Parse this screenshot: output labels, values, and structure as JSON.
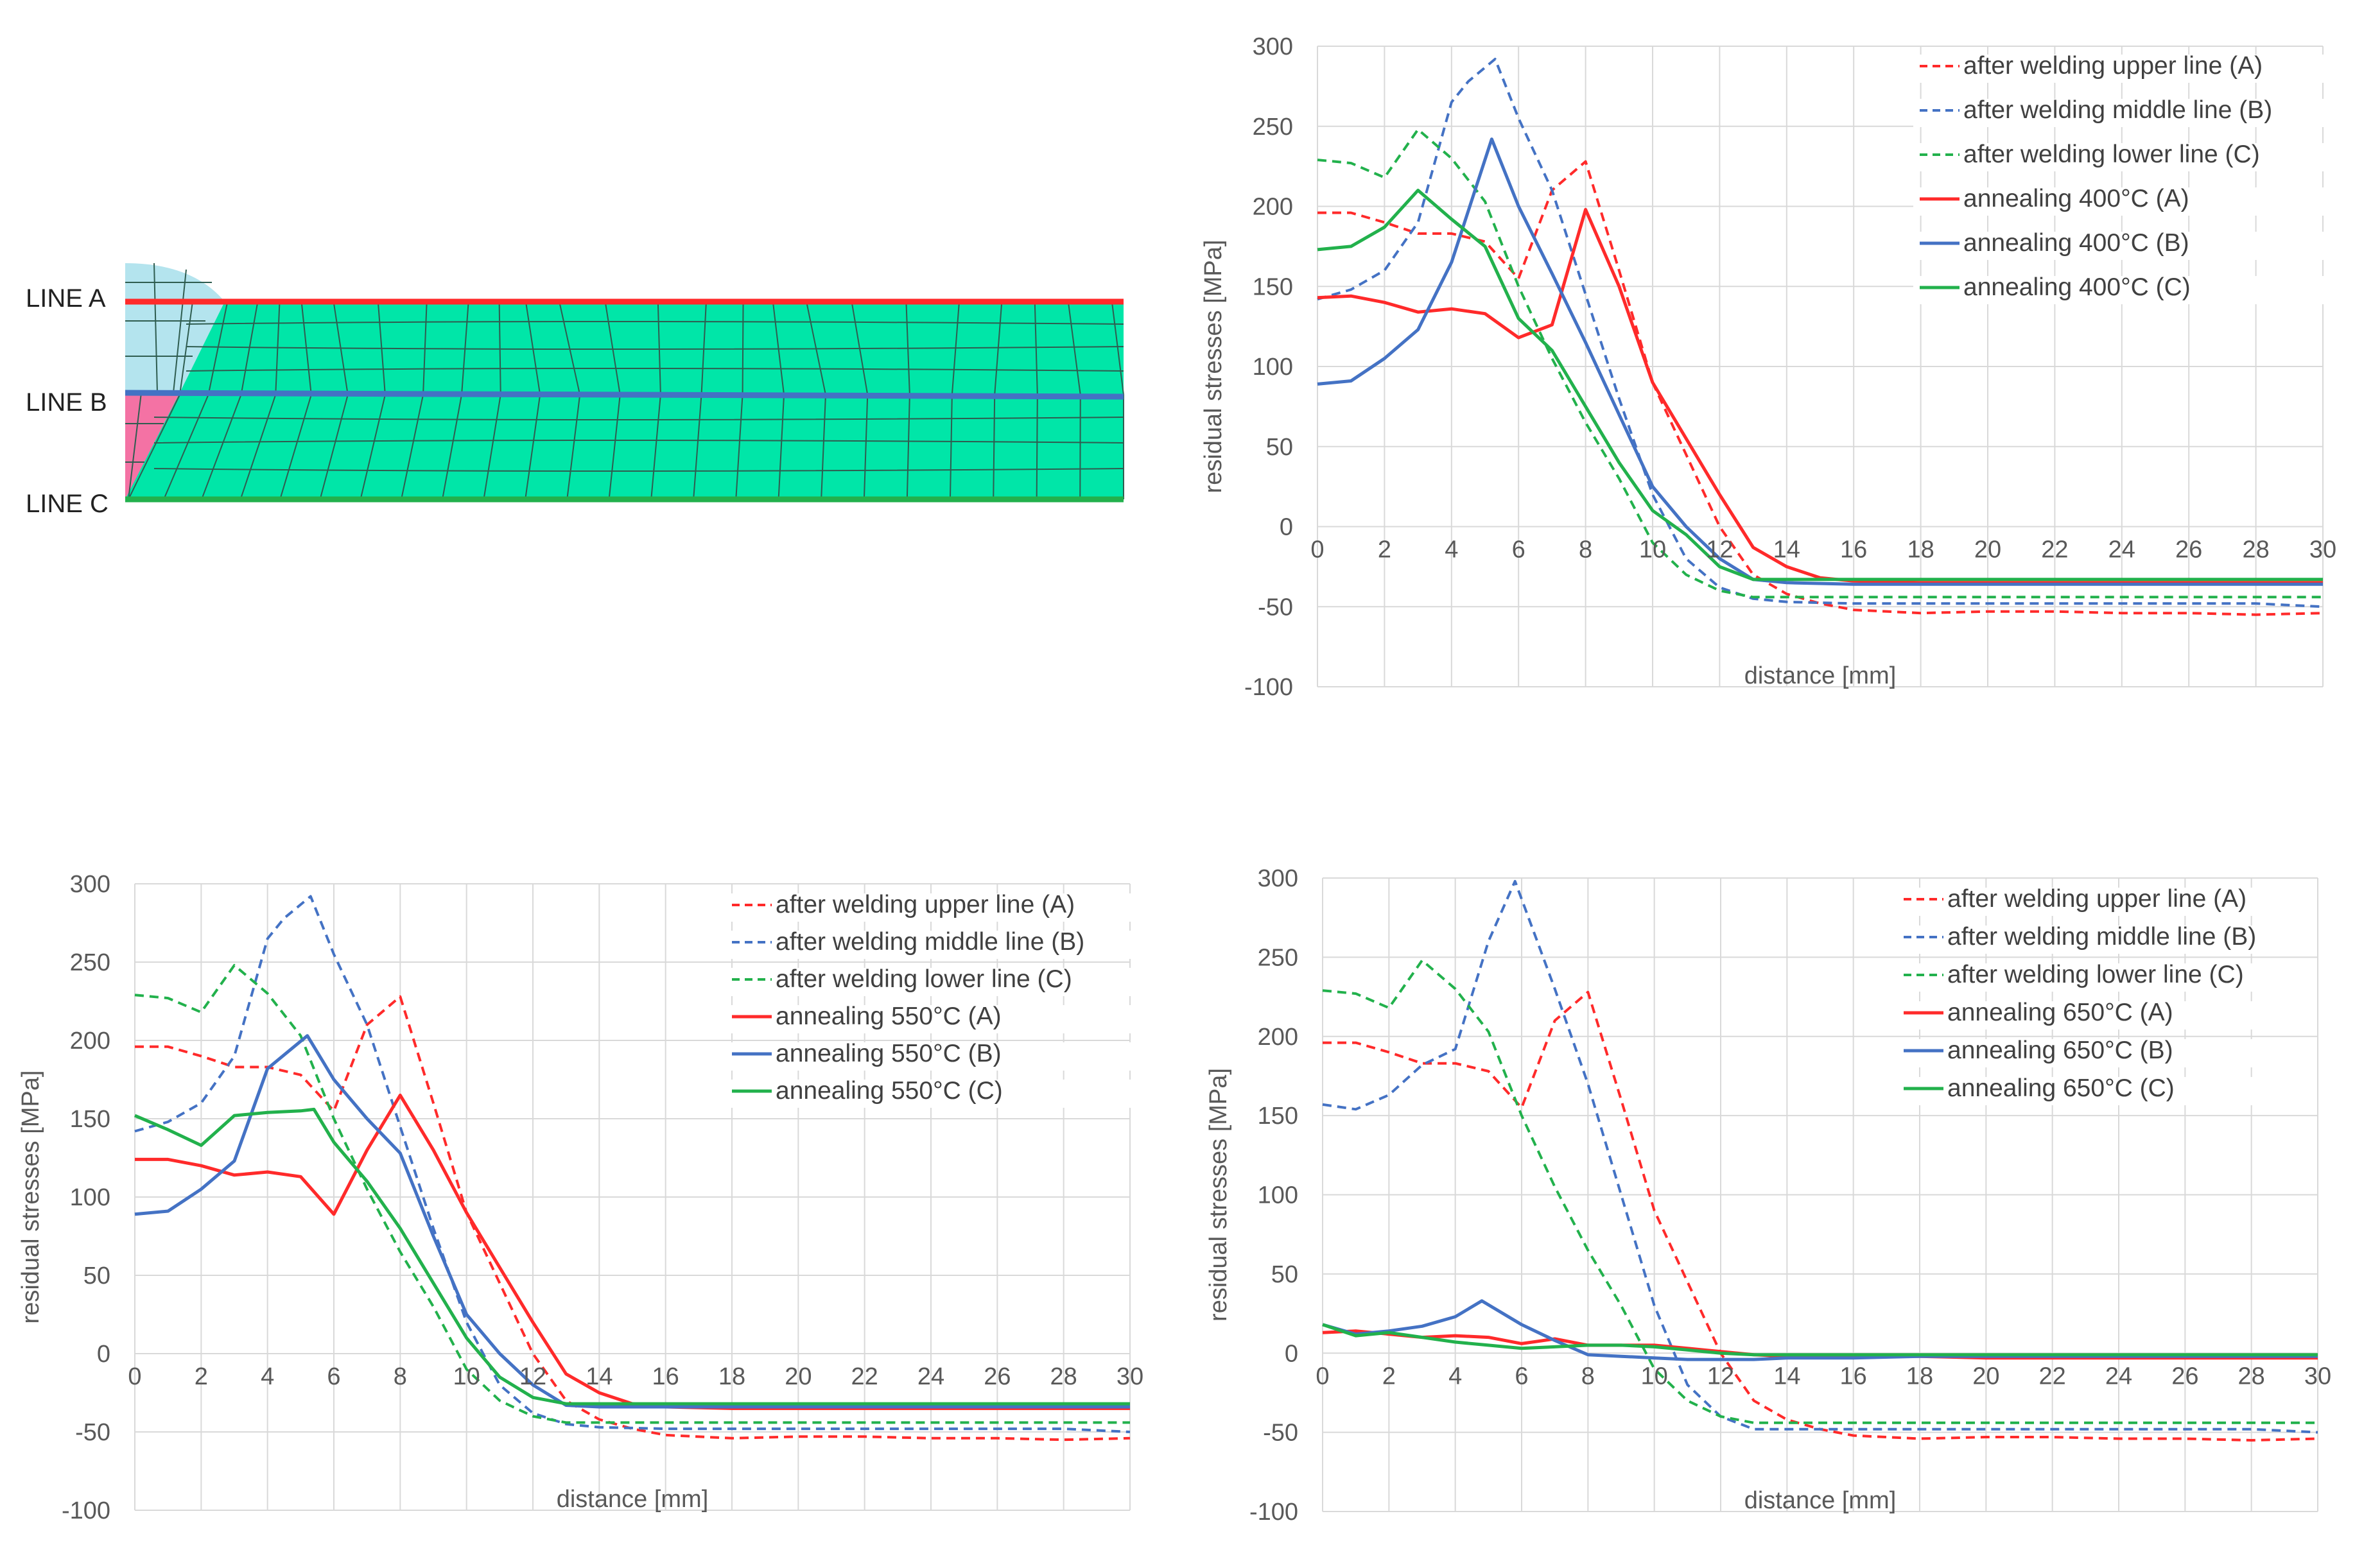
{
  "colors": {
    "red": "#ff2a2a",
    "blue": "#4472c4",
    "green": "#22b14c",
    "grid": "#d9d9d9",
    "mesh_fill": "#00e6a8",
    "mesh_line": "#2f5d50",
    "weld_top": "#b4e4ee",
    "weld_bottom": "#f472a4"
  },
  "diagram": {
    "line_labels": [
      "LINE A",
      "LINE B",
      "LINE C"
    ]
  },
  "chart_data": [
    {
      "type": "line",
      "xlabel": "distance [mm]",
      "ylabel": "residual stresses [MPa]",
      "xlim": [
        0,
        30
      ],
      "ylim": [
        -100,
        300
      ],
      "xticks": [
        "0",
        "2",
        "4",
        "6",
        "8",
        "10",
        "12",
        "14",
        "16",
        "18",
        "20",
        "22",
        "24",
        "26",
        "28",
        "30"
      ],
      "yticks": [
        "300",
        "250",
        "200",
        "150",
        "100",
        "50",
        "0",
        "-50",
        "-100"
      ],
      "series": [
        {
          "name": "after welding upper line (A)",
          "color": "red",
          "style": "dashed",
          "x": [
            0,
            1,
            2,
            3,
            4,
            5,
            6,
            7,
            8,
            9,
            10,
            11,
            12,
            13,
            14,
            15,
            16,
            18,
            20,
            22,
            24,
            26,
            28,
            30
          ],
          "y": [
            196,
            196,
            190,
            183,
            183,
            178,
            155,
            210,
            228,
            160,
            90,
            45,
            0,
            -30,
            -42,
            -48,
            -52,
            -54,
            -53,
            -53,
            -54,
            -54,
            -55,
            -54
          ]
        },
        {
          "name": "after welding middle line (B)",
          "color": "blue",
          "style": "dashed",
          "x": [
            0,
            1,
            2,
            3,
            4,
            4.5,
            5.3,
            6,
            7,
            8,
            9,
            10,
            11,
            12,
            13,
            14,
            16,
            18,
            20,
            22,
            24,
            26,
            28,
            30
          ],
          "y": [
            142,
            148,
            160,
            190,
            265,
            278,
            292,
            255,
            210,
            145,
            80,
            20,
            -20,
            -38,
            -45,
            -47,
            -48,
            -48,
            -48,
            -48,
            -48,
            -48,
            -48,
            -50
          ]
        },
        {
          "name": "after welding lower line (C)",
          "color": "green",
          "style": "dashed",
          "x": [
            0,
            1,
            2,
            3,
            4,
            5,
            6,
            7,
            8,
            9,
            10,
            11,
            12,
            13,
            14,
            16,
            18,
            20,
            22,
            24,
            26,
            28,
            30
          ],
          "y": [
            229,
            227,
            218,
            248,
            230,
            203,
            150,
            105,
            65,
            30,
            -10,
            -30,
            -40,
            -44,
            -44,
            -44,
            -44,
            -44,
            -44,
            -44,
            -44,
            -44,
            -44
          ]
        },
        {
          "name": "annealing 400°C (A)",
          "color": "red",
          "style": "solid",
          "x": [
            0,
            1,
            2,
            3,
            4,
            5,
            6,
            7,
            8,
            9,
            10,
            11,
            12,
            13,
            14,
            15,
            16,
            18,
            20,
            22,
            24,
            26,
            28,
            30
          ],
          "y": [
            143,
            144,
            140,
            134,
            136,
            133,
            118,
            126,
            198,
            150,
            90,
            55,
            20,
            -13,
            -25,
            -32,
            -34,
            -35,
            -35,
            -35,
            -35,
            -35,
            -35,
            -35
          ]
        },
        {
          "name": "annealing 400°C (B)",
          "color": "blue",
          "style": "solid",
          "x": [
            0,
            1,
            2,
            3,
            4,
            5.2,
            6,
            7,
            8,
            9,
            10,
            11,
            12,
            13,
            14,
            16,
            18,
            20,
            22,
            24,
            26,
            28,
            30
          ],
          "y": [
            89,
            91,
            105,
            123,
            165,
            242,
            200,
            158,
            115,
            70,
            25,
            0,
            -20,
            -33,
            -35,
            -36,
            -36,
            -36,
            -36,
            -36,
            -36,
            -36,
            -36
          ]
        },
        {
          "name": "annealing 400°C (C)",
          "color": "green",
          "style": "solid",
          "x": [
            0,
            1,
            2,
            3,
            4,
            5,
            6,
            7,
            8,
            9,
            10,
            11,
            12,
            13,
            14,
            16,
            18,
            20,
            22,
            24,
            26,
            28,
            30
          ],
          "y": [
            173,
            175,
            187,
            210,
            192,
            175,
            130,
            110,
            75,
            40,
            10,
            -5,
            -25,
            -33,
            -33,
            -33,
            -33,
            -33,
            -33,
            -33,
            -33,
            -33,
            -33
          ]
        }
      ]
    },
    {
      "type": "line",
      "xlabel": "distance [mm]",
      "ylabel": "residual stresses [MPa]",
      "xlim": [
        0,
        30
      ],
      "ylim": [
        -100,
        300
      ],
      "xticks": [
        "0",
        "2",
        "4",
        "6",
        "8",
        "10",
        "12",
        "14",
        "16",
        "18",
        "20",
        "22",
        "24",
        "26",
        "28",
        "30"
      ],
      "yticks": [
        "300",
        "250",
        "200",
        "150",
        "100",
        "50",
        "0",
        "-50",
        "-100"
      ],
      "series": [
        {
          "name": "after welding upper line (A)",
          "color": "red",
          "style": "dashed",
          "x": [
            0,
            1,
            2,
            3,
            4,
            5,
            6,
            7,
            8,
            9,
            10,
            11,
            12,
            13,
            14,
            15,
            16,
            18,
            20,
            22,
            24,
            26,
            28,
            30
          ],
          "y": [
            196,
            196,
            190,
            183,
            183,
            178,
            155,
            210,
            228,
            160,
            90,
            45,
            0,
            -30,
            -42,
            -48,
            -52,
            -54,
            -53,
            -53,
            -54,
            -54,
            -55,
            -54
          ]
        },
        {
          "name": "after welding middle line (B)",
          "color": "blue",
          "style": "dashed",
          "x": [
            0,
            1,
            2,
            3,
            4,
            4.5,
            5.3,
            6,
            7,
            8,
            9,
            10,
            11,
            12,
            13,
            14,
            16,
            18,
            20,
            22,
            24,
            26,
            28,
            30
          ],
          "y": [
            142,
            148,
            160,
            190,
            265,
            278,
            292,
            255,
            210,
            145,
            80,
            20,
            -20,
            -38,
            -45,
            -47,
            -48,
            -48,
            -48,
            -48,
            -48,
            -48,
            -48,
            -50
          ]
        },
        {
          "name": "after welding lower line (C)",
          "color": "green",
          "style": "dashed",
          "x": [
            0,
            1,
            2,
            3,
            4,
            5,
            6,
            7,
            8,
            9,
            10,
            11,
            12,
            13,
            14,
            16,
            18,
            20,
            22,
            24,
            26,
            28,
            30
          ],
          "y": [
            229,
            227,
            218,
            248,
            230,
            203,
            150,
            105,
            65,
            30,
            -10,
            -30,
            -40,
            -44,
            -44,
            -44,
            -44,
            -44,
            -44,
            -44,
            -44,
            -44,
            -44
          ]
        },
        {
          "name": "annealing 550°C (A)",
          "color": "red",
          "style": "solid",
          "x": [
            0,
            1,
            2,
            3,
            4,
            5,
            6,
            7,
            8,
            9,
            10,
            11,
            12,
            13,
            14,
            15,
            16,
            18,
            20,
            22,
            24,
            26,
            28,
            30
          ],
          "y": [
            124,
            124,
            120,
            114,
            116,
            113,
            89,
            130,
            165,
            130,
            90,
            55,
            20,
            -13,
            -25,
            -32,
            -34,
            -35,
            -35,
            -35,
            -35,
            -35,
            -35,
            -35
          ]
        },
        {
          "name": "annealing 550°C (B)",
          "color": "blue",
          "style": "solid",
          "x": [
            0,
            1,
            2,
            3,
            4,
            5.2,
            6,
            7,
            8,
            9,
            10,
            11,
            12,
            13,
            14,
            16,
            18,
            20,
            22,
            24,
            26,
            28,
            30
          ],
          "y": [
            89,
            91,
            105,
            123,
            182,
            203,
            175,
            150,
            128,
            75,
            25,
            0,
            -20,
            -33,
            -34,
            -34,
            -34,
            -34,
            -34,
            -34,
            -34,
            -34,
            -34
          ]
        },
        {
          "name": "annealing 550°C (C)",
          "color": "green",
          "style": "solid",
          "x": [
            0,
            1,
            2,
            3,
            4,
            5,
            5.4,
            6,
            7,
            8,
            9,
            10,
            11,
            12,
            13,
            14,
            16,
            18,
            20,
            22,
            24,
            26,
            28,
            30
          ],
          "y": [
            152,
            143,
            133,
            152,
            154,
            155,
            156,
            135,
            110,
            80,
            45,
            10,
            -15,
            -28,
            -32,
            -32,
            -32,
            -32,
            -32,
            -32,
            -32,
            -32,
            -32,
            -32
          ]
        }
      ]
    },
    {
      "type": "line",
      "xlabel": "distance [mm]",
      "ylabel": "residual stresses [MPa]",
      "xlim": [
        0,
        30
      ],
      "ylim": [
        -100,
        300
      ],
      "xticks": [
        "0",
        "2",
        "4",
        "6",
        "8",
        "10",
        "12",
        "14",
        "16",
        "18",
        "20",
        "22",
        "24",
        "26",
        "28",
        "30"
      ],
      "yticks": [
        "300",
        "250",
        "200",
        "150",
        "100",
        "50",
        "0",
        "-50",
        "-100"
      ],
      "series": [
        {
          "name": "after welding upper line (A)",
          "color": "red",
          "style": "dashed",
          "x": [
            0,
            1,
            2,
            3,
            4,
            5,
            6,
            7,
            8,
            9,
            10,
            11,
            12,
            13,
            14,
            15,
            16,
            18,
            20,
            22,
            24,
            26,
            28,
            30
          ],
          "y": [
            196,
            196,
            190,
            183,
            183,
            178,
            155,
            210,
            228,
            160,
            90,
            45,
            0,
            -30,
            -42,
            -48,
            -52,
            -54,
            -53,
            -53,
            -54,
            -54,
            -55,
            -54
          ]
        },
        {
          "name": "after welding middle line (B)",
          "color": "blue",
          "style": "dashed",
          "x": [
            0,
            1,
            2,
            3,
            4,
            5,
            5.8,
            7,
            8,
            9,
            10,
            11,
            12,
            13,
            14,
            16,
            18,
            20,
            22,
            24,
            26,
            28,
            30
          ],
          "y": [
            157,
            154,
            163,
            182,
            192,
            260,
            298,
            230,
            170,
            100,
            30,
            -20,
            -40,
            -48,
            -48,
            -48,
            -48,
            -48,
            -48,
            -48,
            -48,
            -48,
            -50
          ]
        },
        {
          "name": "after welding lower line (C)",
          "color": "green",
          "style": "dashed",
          "x": [
            0,
            1,
            2,
            3,
            4,
            5,
            6,
            7,
            8,
            9,
            10,
            11,
            12,
            13,
            14,
            16,
            18,
            20,
            22,
            24,
            26,
            28,
            30
          ],
          "y": [
            229,
            227,
            218,
            248,
            230,
            203,
            150,
            105,
            65,
            30,
            -10,
            -30,
            -40,
            -44,
            -44,
            -44,
            -44,
            -44,
            -44,
            -44,
            -44,
            -44,
            -44
          ]
        },
        {
          "name": "annealing 650°C (A)",
          "color": "red",
          "style": "solid",
          "x": [
            0,
            1,
            2,
            3,
            4,
            5,
            6,
            7,
            8,
            9,
            10,
            11,
            12,
            13,
            14,
            16,
            18,
            20,
            22,
            24,
            26,
            28,
            30
          ],
          "y": [
            13,
            14,
            12,
            10,
            11,
            10,
            6,
            9,
            5,
            5,
            5,
            3,
            1,
            -1,
            -2,
            -2,
            -2,
            -3,
            -3,
            -3,
            -3,
            -3,
            -3
          ]
        },
        {
          "name": "annealing 650°C (B)",
          "color": "blue",
          "style": "solid",
          "x": [
            0,
            1,
            2,
            3,
            4,
            4.8,
            6,
            7,
            8,
            9,
            10,
            11,
            12,
            13,
            14,
            16,
            18,
            20,
            22,
            24,
            26,
            28,
            30
          ],
          "y": [
            18,
            12,
            14,
            17,
            23,
            33,
            18,
            8,
            -1,
            -2,
            -3,
            -4,
            -4,
            -4,
            -3,
            -3,
            -2,
            -2,
            -2,
            -2,
            -2,
            -2,
            -2
          ]
        },
        {
          "name": "annealing 650°C (C)",
          "color": "green",
          "style": "solid",
          "x": [
            0,
            1,
            2,
            3,
            4,
            5,
            6,
            7,
            8,
            9,
            10,
            11,
            12,
            13,
            14,
            16,
            18,
            20,
            22,
            24,
            26,
            28,
            30
          ],
          "y": [
            18,
            11,
            13,
            10,
            7,
            5,
            3,
            4,
            5,
            5,
            4,
            2,
            0,
            -1,
            -1,
            -1,
            -1,
            -1,
            -1,
            -1,
            -1,
            -1,
            -1
          ]
        }
      ]
    }
  ]
}
